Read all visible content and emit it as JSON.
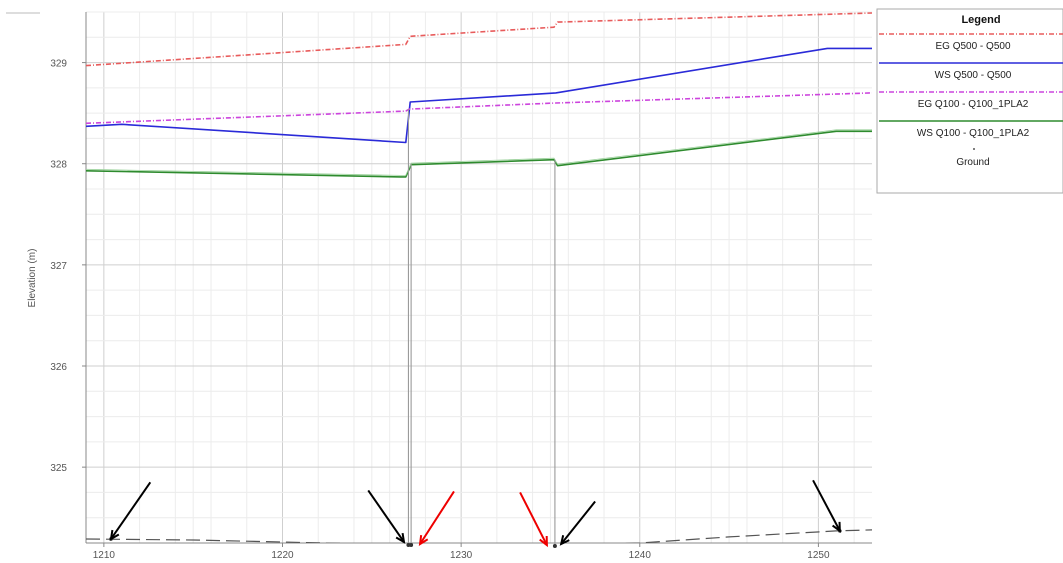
{
  "chart_data": {
    "type": "line",
    "ylabel": "Elevation (m)",
    "xlim": [
      1209,
      1253
    ],
    "ylim": [
      324.25,
      329.5
    ],
    "xticks": [
      1210,
      1220,
      1230,
      1240,
      1250
    ],
    "yticks": [
      325,
      326,
      327,
      328,
      329
    ],
    "grid": true,
    "legend": {
      "title": "Legend",
      "placement": "top-right",
      "entries": [
        {
          "label": "EG  Q500 - Q500",
          "series": "eg500"
        },
        {
          "label": "WS  Q500 - Q500",
          "series": "ws500"
        },
        {
          "label": "EG  Q100 - Q100_1PLA2",
          "series": "eg100"
        },
        {
          "label": "WS  Q100 - Q100_1PLA2",
          "series": "ws100"
        },
        {
          "label": "Ground",
          "series": "ground"
        }
      ]
    },
    "series": [
      {
        "id": "eg500",
        "name": "EG  Q500 - Q500",
        "color": "#e85b5b",
        "style": "dash-dot",
        "x": [
          1209,
          1226.9,
          1227.15,
          1235.2,
          1235.4,
          1253
        ],
        "y": [
          328.97,
          329.18,
          329.26,
          329.35,
          329.4,
          329.49
        ]
      },
      {
        "id": "ws500",
        "name": "WS  Q500 - Q500",
        "color": "#2a2ad8",
        "style": "solid",
        "x": [
          1209,
          1211,
          1226.9,
          1227.15,
          1235.3,
          1250.5,
          1253
        ],
        "y": [
          328.37,
          328.39,
          328.21,
          328.61,
          328.7,
          329.14,
          329.14
        ]
      },
      {
        "id": "eg100",
        "name": "EG  Q100 - Q100_1PLA2",
        "color": "#cc44dd",
        "style": "dash-dot",
        "x": [
          1209,
          1226.9,
          1227.1,
          1235.3,
          1253
        ],
        "y": [
          328.4,
          328.52,
          328.54,
          328.6,
          328.7
        ]
      },
      {
        "id": "ws100",
        "name": "WS  Q100 - Q100_1PLA2",
        "color": "#2e8b2e",
        "style": "solid",
        "x": [
          1209,
          1226.6,
          1226.9,
          1227.2,
          1235.2,
          1235.4,
          1251,
          1253
        ],
        "y": [
          327.93,
          327.87,
          327.87,
          327.99,
          328.04,
          327.98,
          328.32,
          328.32
        ]
      },
      {
        "id": "ground",
        "name": "Ground",
        "color": "#555555",
        "style": "dashed",
        "x": [
          1209,
          1215,
          1220,
          1226.9,
          1230,
          1235.3,
          1240,
          1245,
          1251,
          1253
        ],
        "y": [
          324.29,
          324.28,
          324.26,
          324.23,
          324.22,
          324.22,
          324.25,
          324.31,
          324.37,
          324.38
        ]
      }
    ],
    "structure_lines": [
      {
        "x": 1227.05,
        "y_bottom": 324.23,
        "y_top": 328.54
      },
      {
        "x": 1227.2,
        "y_bottom": 324.23,
        "y_top": 328.0
      },
      {
        "x": 1235.25,
        "y_bottom": 324.22,
        "y_top": 328.04
      }
    ],
    "annotations": [
      {
        "type": "arrow",
        "color": "#000000",
        "tip": [
          1210.4,
          324.29
        ],
        "tail": [
          1212.6,
          324.85
        ]
      },
      {
        "type": "arrow",
        "color": "#000000",
        "tip": [
          1226.8,
          324.26
        ],
        "tail": [
          1224.8,
          324.77
        ]
      },
      {
        "type": "arrow",
        "color": "#ee0000",
        "tip": [
          1227.7,
          324.24
        ],
        "tail": [
          1229.6,
          324.76
        ]
      },
      {
        "type": "arrow",
        "color": "#ee0000",
        "tip": [
          1234.8,
          324.23
        ],
        "tail": [
          1233.3,
          324.75
        ]
      },
      {
        "type": "arrow",
        "color": "#000000",
        "tip": [
          1235.6,
          324.24
        ],
        "tail": [
          1237.5,
          324.66
        ]
      },
      {
        "type": "arrow",
        "color": "#000000",
        "tip": [
          1251.2,
          324.37
        ],
        "tail": [
          1249.7,
          324.87
        ]
      }
    ]
  }
}
